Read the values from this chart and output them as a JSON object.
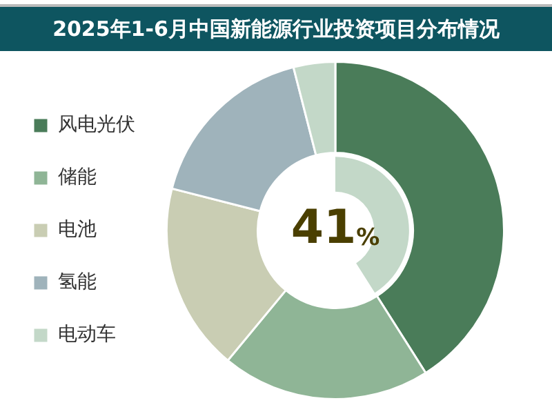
{
  "chart_data": {
    "type": "donut",
    "title": "2025年1-6月中国新能源行业投资项目分布情况",
    "categories": [
      "风电光伏",
      "储能",
      "电池",
      "氢能",
      "电动车"
    ],
    "values": [
      41,
      20,
      18,
      17,
      4
    ],
    "colors": [
      "#4a7c59",
      "#8fb596",
      "#c9cdb3",
      "#9fb3bb",
      "#c3d8c8"
    ],
    "value_labels": [
      "41%",
      null,
      null,
      null,
      null
    ],
    "legend": "left"
  }
}
